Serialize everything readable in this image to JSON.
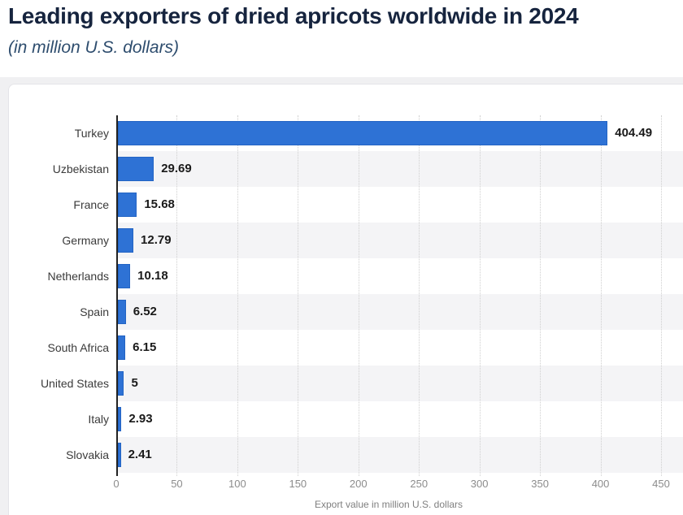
{
  "page": {
    "title": "Leading exporters of dried apricots worldwide in 2024",
    "subtitle": "(in million U.S. dollars)"
  },
  "chart_data": {
    "type": "bar",
    "orientation": "horizontal",
    "title": "Leading exporters of dried apricots worldwide in 2024",
    "subtitle": "(in million U.S. dollars)",
    "xlabel": "Export value in million U.S. dollars",
    "categories": [
      "Turkey",
      "Uzbekistan",
      "France",
      "Germany",
      "Netherlands",
      "Spain",
      "South Africa",
      "United States",
      "Italy",
      "Slovakia"
    ],
    "values": [
      404.49,
      29.69,
      15.68,
      12.79,
      10.18,
      6.52,
      6.15,
      5,
      2.93,
      2.41
    ],
    "value_labels": [
      "404.49",
      "29.69",
      "15.68",
      "12.79",
      "10.18",
      "6.52",
      "6.15",
      "5",
      "2.93",
      "2.41"
    ],
    "xlim": [
      0,
      450
    ],
    "xticks": [
      0,
      50,
      100,
      150,
      200,
      250,
      300,
      350,
      400,
      450
    ],
    "grid": "vertical-dotted",
    "legend": "none",
    "row_stripes": "alternate-even-rows-white-odd-rows-gray",
    "colors": {
      "bar": "#2e72d5",
      "bar_border": "#2364c4",
      "stripe": "#f4f4f6",
      "gridline": "#cfcfcf",
      "axis_line": "#222222",
      "title": "#16243e",
      "subtitle": "#2e4d6e",
      "category_label": "#3a3a3a",
      "value_label": "#1a1a1a",
      "tick_label": "#8c8c8c",
      "axis_title": "#7f7f7f",
      "page_bg": "#f0f0f2",
      "card_bg": "#ffffff",
      "card_border": "#e4e4e8"
    }
  }
}
